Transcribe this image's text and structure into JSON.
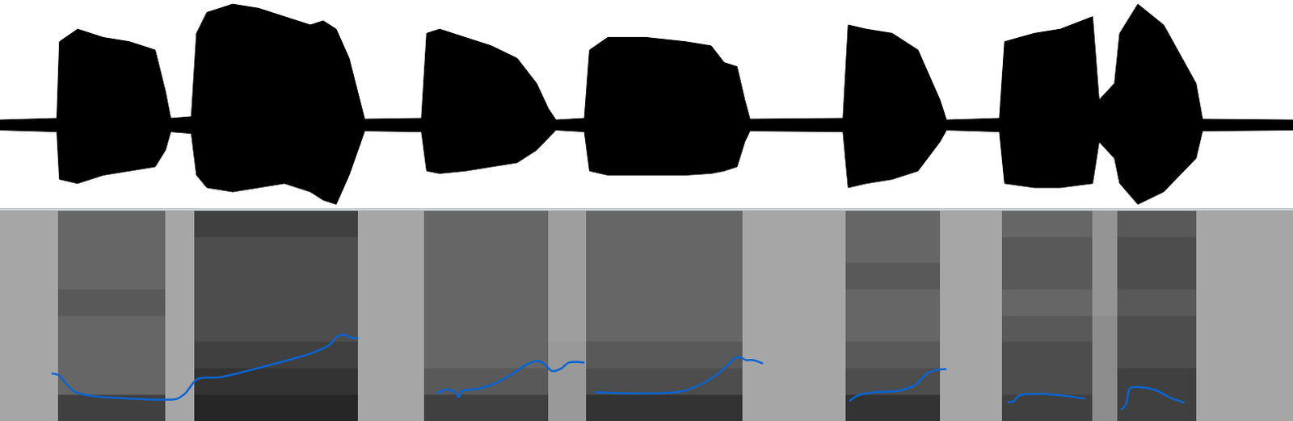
{
  "chart_data": [
    {
      "type": "area",
      "x": [
        0,
        4.4,
        4.6,
        6,
        8,
        10,
        12,
        12.8,
        13.2,
        14.8,
        15.2,
        16,
        18,
        20,
        22,
        24,
        25,
        26,
        27,
        27.8,
        28.2,
        32.6,
        33,
        34,
        36,
        38,
        40,
        41.5,
        42.4,
        43,
        45.2,
        45.6,
        47,
        50,
        53,
        55,
        56,
        57,
        57.6,
        58,
        65.2,
        65.6,
        67,
        69,
        71,
        72.7,
        73.2,
        77.3,
        77.7,
        80,
        82,
        84.5,
        85,
        86.2,
        86.6,
        88,
        90,
        92.5,
        93,
        100
      ],
      "series": [
        {
          "color": "#000000",
          "values": [
            0.06,
            0.08,
            1.0,
            1.15,
            1.05,
            1.0,
            0.9,
            0.4,
            0.08,
            0.1,
            1.1,
            1.35,
            1.45,
            1.4,
            1.3,
            1.2,
            1.25,
            1.15,
            0.8,
            0.3,
            0.07,
            0.08,
            1.1,
            1.15,
            1.05,
            0.95,
            0.8,
            0.5,
            0.2,
            0.06,
            0.08,
            0.9,
            1.05,
            1.05,
            1.0,
            0.95,
            0.75,
            0.7,
            0.3,
            0.07,
            0.08,
            1.2,
            1.15,
            1.1,
            0.9,
            0.3,
            0.06,
            0.08,
            1.0,
            1.1,
            1.15,
            1.3,
            0.3,
            0.5,
            1.1,
            1.45,
            1.2,
            0.5,
            0.07,
            0.06
          ]
        },
        {
          "color": "#000000",
          "values": [
            -0.06,
            -0.08,
            -0.65,
            -0.7,
            -0.6,
            -0.55,
            -0.5,
            -0.3,
            -0.08,
            -0.1,
            -0.6,
            -0.75,
            -0.8,
            -0.75,
            -0.7,
            -0.8,
            -0.9,
            -0.95,
            -0.6,
            -0.25,
            -0.07,
            -0.08,
            -0.55,
            -0.58,
            -0.55,
            -0.5,
            -0.45,
            -0.3,
            -0.15,
            -0.06,
            -0.08,
            -0.55,
            -0.6,
            -0.6,
            -0.6,
            -0.58,
            -0.55,
            -0.5,
            -0.2,
            -0.07,
            -0.08,
            -0.75,
            -0.7,
            -0.65,
            -0.55,
            -0.2,
            -0.06,
            -0.08,
            -0.7,
            -0.75,
            -0.75,
            -0.7,
            -0.2,
            -0.4,
            -0.7,
            -0.95,
            -0.8,
            -0.4,
            -0.07,
            -0.06
          ]
        }
      ],
      "xlim": [
        0,
        100
      ],
      "ylim": [
        -1,
        1.5
      ],
      "tick_labels": false,
      "grid": false
    },
    {
      "type": "heatmap",
      "x": [
        0,
        4.5,
        12.8,
        15,
        27.7,
        32.8,
        42.4,
        45.3,
        57.4,
        65.4,
        72.7,
        77.5,
        84.5,
        86.4,
        92.5,
        100
      ],
      "y": [
        0,
        625,
        1250,
        1875,
        2500,
        3125,
        3750,
        4375,
        5000
      ],
      "z": [
        [
          0.35,
          0.75,
          0.35,
          0.85,
          0.35,
          0.75,
          0.4,
          0.8,
          0.35,
          0.8,
          0.35,
          0.75,
          0.45,
          0.75,
          0.35
        ],
        [
          0.35,
          0.6,
          0.35,
          0.8,
          0.35,
          0.65,
          0.4,
          0.7,
          0.35,
          0.7,
          0.35,
          0.7,
          0.45,
          0.75,
          0.35
        ],
        [
          0.35,
          0.6,
          0.35,
          0.75,
          0.35,
          0.6,
          0.4,
          0.65,
          0.35,
          0.65,
          0.35,
          0.7,
          0.45,
          0.7,
          0.35
        ],
        [
          0.35,
          0.6,
          0.35,
          0.7,
          0.35,
          0.6,
          0.38,
          0.6,
          0.35,
          0.6,
          0.35,
          0.65,
          0.45,
          0.7,
          0.35
        ],
        [
          0.35,
          0.65,
          0.35,
          0.7,
          0.35,
          0.6,
          0.38,
          0.6,
          0.35,
          0.6,
          0.35,
          0.6,
          0.42,
          0.65,
          0.35
        ],
        [
          0.35,
          0.6,
          0.35,
          0.7,
          0.35,
          0.6,
          0.38,
          0.6,
          0.35,
          0.65,
          0.35,
          0.65,
          0.42,
          0.7,
          0.35
        ],
        [
          0.35,
          0.6,
          0.35,
          0.7,
          0.35,
          0.6,
          0.38,
          0.6,
          0.35,
          0.6,
          0.35,
          0.65,
          0.42,
          0.7,
          0.35
        ],
        [
          0.35,
          0.6,
          0.35,
          0.75,
          0.35,
          0.6,
          0.38,
          0.6,
          0.35,
          0.6,
          0.35,
          0.6,
          0.42,
          0.65,
          0.35
        ]
      ],
      "zlim": [
        0,
        1
      ],
      "xlim": [
        0,
        100
      ],
      "ylim": [
        0,
        5000
      ],
      "tick_labels": false
    },
    {
      "type": "line",
      "x": [
        4.0,
        4.5,
        5.1,
        5.7,
        7.0,
        9.6,
        12.8,
        13.7,
        14.3,
        15.3,
        16.9,
        19.1,
        22.3,
        24.2,
        25.5,
        26.1,
        26.7,
        27.1,
        27.7,
        30.0,
        33.8,
        34.4,
        35.1,
        35.5,
        35.7,
        37.0,
        38.3,
        39.5,
        40.8,
        41.6,
        42.1,
        42.7,
        43.4,
        44.0,
        45.2,
        45.6,
        46.0,
        48.5,
        51.0,
        52.9,
        54.5,
        55.8,
        56.8,
        57.2,
        57.7,
        58.2,
        59.0,
        62.0,
        65.7,
        66.3,
        67.6,
        69.5,
        70.8,
        71.7,
        72.4,
        73.2,
        75.0,
        77.9,
        78.4,
        78.8,
        80.4,
        82.3,
        83.9,
        85.0,
        86.7,
        87.1,
        87.4,
        88.3,
        89.3,
        90.6,
        91.6
      ],
      "values": [
        171,
        168,
        151,
        135,
        126,
        121,
        118,
        120,
        130,
        160,
        163,
        176,
        198,
        213,
        229,
        246,
        249,
        243,
        243,
        null,
        130,
        138,
        135,
        123,
        135,
        140,
        151,
        168,
        190,
        196,
        190,
        176,
        181,
        193,
        193,
        null,
        133,
        131,
        131,
        136,
        153,
        176,
        201,
        204,
        198,
        198,
        191,
        null,
        115,
        126,
        133,
        136,
        148,
        171,
        178,
        180,
        null,
        113,
        115,
        126,
        130,
        126,
        120,
        null,
        97,
        110,
        141,
        143,
        138,
        121,
        112
      ],
      "color": "#0a64d2",
      "xlim": [
        0,
        100
      ],
      "ylim": [
        75,
        500
      ],
      "tick_labels": false
    }
  ]
}
